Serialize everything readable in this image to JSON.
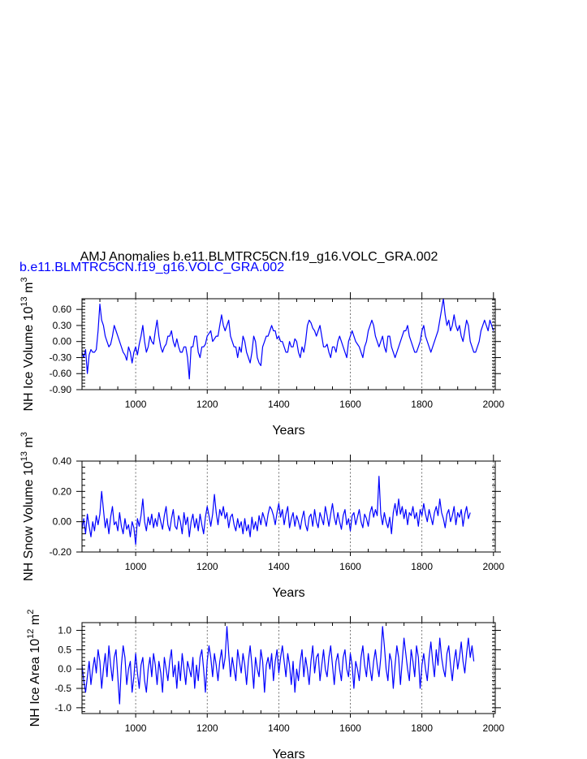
{
  "header": {
    "title": "AMJ Anomalies b.e11.BLMTRC5CN.f19_g16.VOLC_GRA.002",
    "case_label": "b.e11.BLMTRC5CN.f19_g16.VOLC_GRA.002",
    "case_color": "#0000ff"
  },
  "chart_data": [
    {
      "type": "line",
      "title": "",
      "xlabel": "Years",
      "ylabel": "NH Ice Volume 10^13 m^3",
      "ylabel_parts": {
        "pre": "NH Ice Volume 10",
        "exp1": "13",
        "mid": " m",
        "exp2": "3"
      },
      "xlim": [
        850,
        2005
      ],
      "ylim": [
        -0.9,
        0.8
      ],
      "x_ticks": [
        1000,
        1200,
        1400,
        1600,
        1800,
        2000
      ],
      "x_tick_labels": [
        "1000",
        "1200",
        "1400",
        "1600",
        "1800",
        "2000"
      ],
      "y_ticks": [
        -0.9,
        -0.6,
        -0.3,
        0.0,
        0.3,
        0.6
      ],
      "y_tick_labels": [
        "-0.90",
        "-0.60",
        "-0.30",
        "0.00",
        "0.30",
        "0.60"
      ],
      "grid": "vertical dashed lines at major x ticks",
      "series": [
        {
          "color": "#0000ff",
          "x_start": 850,
          "x_step": 5,
          "values": [
            -0.2,
            -0.3,
            -0.15,
            -0.6,
            -0.25,
            -0.15,
            -0.2,
            -0.2,
            -0.15,
            0.2,
            0.7,
            0.4,
            0.3,
            0.1,
            0.0,
            -0.1,
            -0.05,
            0.1,
            0.3,
            0.2,
            0.1,
            0.0,
            -0.1,
            -0.2,
            -0.25,
            -0.35,
            -0.1,
            -0.2,
            -0.4,
            -0.2,
            -0.1,
            -0.25,
            -0.05,
            0.1,
            0.3,
            0.0,
            -0.2,
            -0.1,
            0.1,
            0.0,
            -0.05,
            0.2,
            0.4,
            0.1,
            -0.1,
            -0.2,
            -0.1,
            -0.05,
            0.1,
            0.1,
            0.2,
            0.0,
            -0.1,
            0.05,
            -0.1,
            -0.2,
            -0.2,
            -0.1,
            -0.1,
            -0.3,
            -0.7,
            -0.1,
            -0.1,
            0.1,
            0.1,
            -0.2,
            -0.3,
            -0.1,
            -0.1,
            -0.05,
            0.1,
            0.15,
            0.2,
            0.0,
            0.05,
            0.1,
            0.1,
            0.3,
            0.5,
            0.3,
            0.2,
            0.3,
            0.4,
            0.1,
            0.0,
            -0.1,
            -0.1,
            -0.3,
            -0.1,
            -0.2,
            0.1,
            0.0,
            -0.2,
            -0.3,
            -0.4,
            -0.2,
            0.1,
            0.0,
            -0.3,
            -0.4,
            -0.45,
            -0.1,
            0.0,
            0.1,
            0.1,
            0.2,
            0.3,
            0.2,
            0.2,
            0.05,
            0.1,
            0.0,
            0.0,
            -0.1,
            -0.2,
            -0.2,
            0.0,
            -0.1,
            -0.1,
            0.05,
            0.0,
            -0.2,
            -0.3,
            -0.1,
            -0.2,
            0.0,
            0.3,
            0.4,
            0.35,
            0.25,
            0.2,
            0.1,
            0.2,
            0.3,
            0.1,
            -0.1,
            -0.1,
            -0.05,
            -0.2,
            -0.3,
            -0.1,
            -0.1,
            -0.2,
            0.0,
            0.1,
            0.0,
            -0.1,
            -0.2,
            -0.3,
            0.0,
            0.1,
            0.2,
            0.1,
            0.0,
            -0.05,
            -0.1,
            -0.2,
            -0.3,
            -0.1,
            0.0,
            0.2,
            0.3,
            0.4,
            0.3,
            0.1,
            0.0,
            -0.1,
            0.0,
            0.1,
            -0.1,
            -0.2,
            0.1,
            0.1,
            -0.1,
            -0.2,
            -0.3,
            -0.2,
            -0.1,
            0.0,
            0.1,
            0.2,
            0.2,
            0.3,
            0.1,
            0.0,
            -0.1,
            -0.2,
            -0.2,
            -0.1,
            0.0,
            0.2,
            0.3,
            0.1,
            0.0,
            -0.1,
            -0.2,
            -0.1,
            0.0,
            0.1,
            0.2,
            0.4,
            0.6,
            0.8,
            0.5,
            0.3,
            0.4,
            0.2,
            0.3,
            0.5,
            0.3,
            0.2,
            0.3,
            0.1,
            0.0,
            0.2,
            0.4,
            0.3,
            0.0,
            -0.1,
            -0.2,
            -0.2,
            -0.1,
            0.0,
            0.2,
            0.3,
            0.4,
            0.3,
            0.2,
            0.4,
            0.3,
            0.2
          ]
        }
      ]
    },
    {
      "type": "line",
      "title": "",
      "xlabel": "Years",
      "ylabel": "NH Snow Volume 10^13 m^3",
      "ylabel_parts": {
        "pre": "NH Snow Volume 10",
        "exp1": "13",
        "mid": " m",
        "exp2": "3"
      },
      "xlim": [
        850,
        2005
      ],
      "ylim": [
        -0.2,
        0.4
      ],
      "x_ticks": [
        1000,
        1200,
        1400,
        1600,
        1800,
        2000
      ],
      "x_tick_labels": [
        "1000",
        "1200",
        "1400",
        "1600",
        "1800",
        "2000"
      ],
      "y_ticks": [
        -0.2,
        0.0,
        0.2,
        0.4
      ],
      "y_tick_labels": [
        "-0.20",
        "0.00",
        "0.20",
        "0.40"
      ],
      "grid": "vertical dashed lines at major x ticks",
      "series": [
        {
          "color": "#0000ff",
          "x_start": 850,
          "x_step": 5,
          "values": [
            -0.05,
            0.02,
            -0.08,
            0.05,
            -0.03,
            -0.1,
            0.0,
            -0.06,
            0.04,
            -0.02,
            0.05,
            0.2,
            0.08,
            -0.04,
            0.02,
            -0.08,
            0.03,
            0.1,
            -0.02,
            0.0,
            -0.06,
            0.06,
            -0.03,
            -0.08,
            0.02,
            -0.05,
            -0.02,
            -0.1,
            0.0,
            -0.04,
            -0.15,
            0.02,
            -0.03,
            0.04,
            0.15,
            0.0,
            -0.06,
            0.03,
            -0.02,
            0.05,
            -0.04,
            0.02,
            -0.03,
            0.06,
            0.0,
            -0.05,
            0.04,
            0.1,
            -0.02,
            -0.06,
            0.02,
            0.08,
            -0.03,
            -0.05,
            0.04,
            0.0,
            -0.08,
            0.06,
            -0.02,
            0.03,
            -0.1,
            0.0,
            0.05,
            -0.04,
            0.02,
            -0.06,
            0.05,
            -0.02,
            -0.08,
            0.03,
            0.1,
            0.04,
            -0.03,
            0.05,
            0.18,
            0.06,
            -0.02,
            0.08,
            0.04,
            0.1,
            0.02,
            0.06,
            -0.04,
            0.03,
            0.05,
            -0.02,
            -0.06,
            0.02,
            -0.04,
            0.0,
            -0.08,
            0.02,
            -0.06,
            -0.02,
            -0.1,
            0.03,
            -0.05,
            0.0,
            -0.06,
            0.04,
            -0.02,
            0.06,
            0.02,
            -0.03,
            0.05,
            0.1,
            0.08,
            0.04,
            -0.02,
            0.06,
            0.12,
            0.03,
            0.08,
            -0.02,
            0.05,
            0.1,
            -0.04,
            0.02,
            0.06,
            -0.03,
            0.04,
            0.0,
            -0.05,
            0.02,
            0.07,
            -0.02,
            -0.06,
            0.03,
            0.05,
            -0.03,
            0.08,
            0.0,
            -0.04,
            0.06,
            0.02,
            -0.02,
            0.1,
            0.04,
            -0.03,
            0.05,
            0.12,
            0.03,
            -0.02,
            0.06,
            0.0,
            -0.05,
            0.04,
            0.08,
            -0.02,
            0.02,
            -0.06,
            0.04,
            0.06,
            -0.02,
            0.03,
            0.08,
            0.0,
            -0.04,
            0.05,
            0.02,
            -0.03,
            0.06,
            0.1,
            0.03,
            0.08,
            0.04,
            0.3,
            0.05,
            -0.02,
            0.06,
            0.0,
            -0.04,
            0.03,
            -0.08,
            0.06,
            0.12,
            0.04,
            0.15,
            0.05,
            0.1,
            0.02,
            0.08,
            -0.02,
            0.06,
            0.04,
            0.1,
            0.02,
            0.06,
            -0.03,
            0.08,
            0.04,
            0.12,
            0.05,
            0.0,
            0.08,
            0.03,
            -0.02,
            0.06,
            0.1,
            0.04,
            0.15,
            0.06,
            0.02,
            -0.04,
            0.05,
            0.08,
            0.0,
            0.04,
            0.1,
            -0.02,
            0.06,
            0.03,
            0.08,
            -0.03,
            0.05,
            0.1,
            0.02,
            0.06
          ]
        }
      ]
    },
    {
      "type": "line",
      "title": "",
      "xlabel": "Years",
      "ylabel": "NH Ice Area 10^12 m^2",
      "ylabel_parts": {
        "pre": "NH Ice Area 10",
        "exp1": "12",
        "mid": " m",
        "exp2": "2"
      },
      "xlim": [
        850,
        2005
      ],
      "ylim": [
        -1.15,
        1.2
      ],
      "x_ticks": [
        1000,
        1200,
        1400,
        1600,
        1800,
        2000
      ],
      "x_tick_labels": [
        "1000",
        "1200",
        "1400",
        "1600",
        "1800",
        "2000"
      ],
      "y_ticks": [
        -1.0,
        -0.5,
        0.0,
        0.5,
        1.0
      ],
      "y_tick_labels": [
        "-1.0",
        "-0.5",
        "0.0",
        "0.5",
        "1.0"
      ],
      "grid": "vertical dashed lines at major x ticks",
      "series": [
        {
          "color": "#0000ff",
          "x_start": 850,
          "x_step": 5,
          "values": [
            0.1,
            -0.3,
            -0.6,
            -0.2,
            0.2,
            -0.4,
            0.0,
            0.3,
            -0.1,
            0.5,
            0.2,
            -0.5,
            0.0,
            0.4,
            -0.2,
            0.6,
            0.1,
            -0.3,
            0.3,
            0.5,
            -0.2,
            -0.9,
            0.1,
            0.6,
            0.3,
            -0.4,
            0.0,
            0.2,
            -0.6,
            -0.2,
            0.4,
            -0.1,
            -0.5,
            0.1,
            0.3,
            -0.3,
            -0.6,
            0.0,
            0.3,
            -0.2,
            0.4,
            0.1,
            -0.4,
            0.2,
            -0.1,
            -0.6,
            0.3,
            0.0,
            -0.3,
            0.2,
            0.5,
            -0.2,
            0.1,
            -0.5,
            0.2,
            -0.3,
            0.4,
            0.0,
            -0.4,
            0.2,
            0.0,
            -0.2,
            0.3,
            -0.5,
            0.1,
            -0.3,
            0.3,
            0.5,
            0.0,
            -0.6,
            0.2,
            0.6,
            0.3,
            -0.2,
            0.4,
            0.1,
            -0.3,
            0.2,
            0.5,
            0.0,
            0.3,
            1.1,
            0.4,
            -0.2,
            0.3,
            0.0,
            -0.3,
            0.5,
            0.2,
            -0.1,
            0.4,
            0.1,
            -0.4,
            0.2,
            0.6,
            0.1,
            -0.5,
            0.3,
            0.0,
            -0.2,
            0.5,
            0.2,
            -0.6,
            0.1,
            0.3,
            0.0,
            0.4,
            -0.3,
            0.2,
            0.5,
            -0.1,
            0.3,
            0.6,
            0.2,
            -0.2,
            0.4,
            0.1,
            -0.4,
            0.2,
            -0.6,
            0.0,
            -0.3,
            0.2,
            0.5,
            -0.2,
            0.3,
            0.0,
            -0.4,
            0.2,
            0.6,
            -0.1,
            0.3,
            0.4,
            -0.3,
            0.1,
            0.5,
            0.0,
            -0.2,
            0.3,
            0.6,
            0.1,
            -0.4,
            0.2,
            0.4,
            0.0,
            -0.3,
            0.3,
            0.5,
            0.0,
            -0.2,
            0.4,
            0.1,
            -0.5,
            0.2,
            0.0,
            -0.3,
            0.3,
            0.6,
            0.1,
            -0.2,
            0.4,
            0.0,
            -0.3,
            0.2,
            0.5,
            0.1,
            -0.2,
            0.3,
            1.1,
            0.6,
            0.0,
            -0.3,
            0.4,
            0.2,
            -0.5,
            0.1,
            0.6,
            0.3,
            -0.4,
            0.2,
            0.8,
            0.4,
            0.0,
            -0.3,
            0.5,
            0.2,
            -0.2,
            0.6,
            0.3,
            -0.5,
            0.1,
            0.4,
            0.0,
            -0.3,
            0.3,
            0.7,
            0.2,
            -0.2,
            0.5,
            0.1,
            0.8,
            0.3,
            0.0,
            -0.2,
            0.4,
            0.6,
            0.1,
            -0.3,
            0.2,
            0.5,
            0.0,
            0.3,
            0.7,
            0.2,
            -0.1,
            0.4,
            0.8,
            0.3,
            0.6,
            0.2
          ]
        }
      ]
    }
  ]
}
